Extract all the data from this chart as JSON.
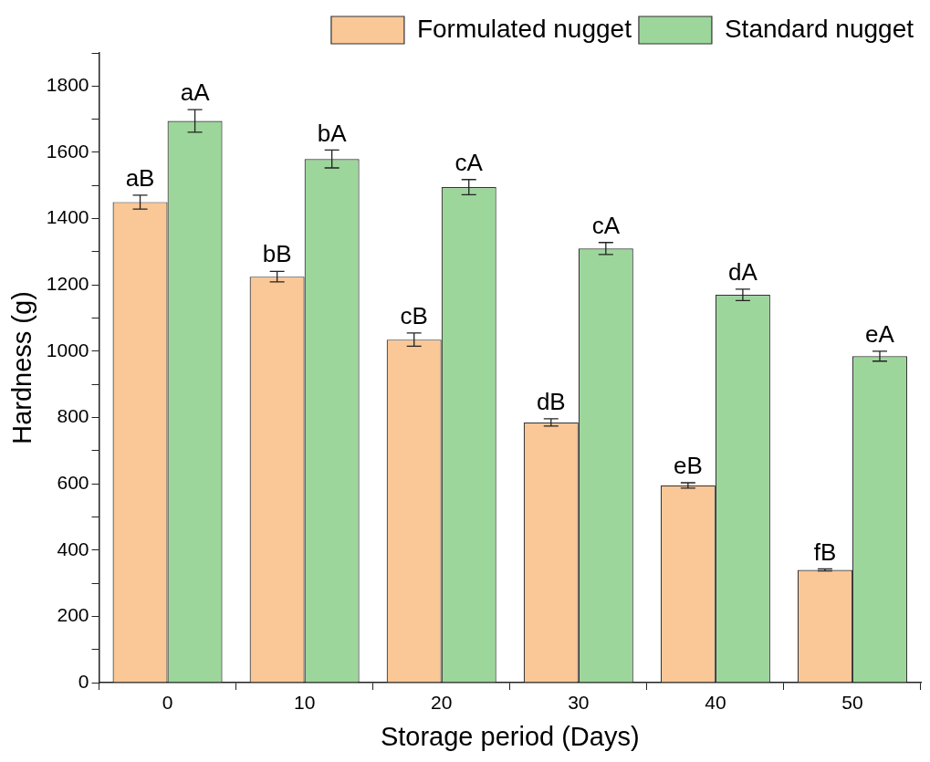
{
  "chart_data": {
    "type": "bar",
    "xlabel": "Storage period (Days)",
    "ylabel": "Hardness (g)",
    "categories": [
      "0",
      "10",
      "20",
      "30",
      "40",
      "50"
    ],
    "series": [
      {
        "name": "Formulated nugget",
        "color": "#fac796",
        "values": [
          1450,
          1225,
          1035,
          785,
          595,
          340
        ],
        "errors": [
          21,
          16,
          20,
          11,
          8,
          3
        ],
        "value_labels": [
          "aB",
          "bB",
          "cB",
          "dB",
          "eB",
          "fB"
        ]
      },
      {
        "name": "Standard nugget",
        "color": "#9dd69b",
        "values": [
          1695,
          1580,
          1495,
          1310,
          1170,
          985
        ],
        "errors": [
          34,
          27,
          23,
          18,
          17,
          15
        ],
        "value_labels": [
          "aA",
          "bA",
          "cA",
          "cA",
          "dA",
          "eA"
        ]
      }
    ],
    "ylim": [
      0,
      1900
    ],
    "yticks": [
      0,
      {
        "value": 100,
        "label": null
      },
      200,
      {
        "value": 300,
        "label": null
      },
      400,
      {
        "value": 500,
        "label": null
      },
      600,
      {
        "value": 700,
        "label": null
      },
      800,
      {
        "value": 900,
        "label": null
      },
      1000,
      {
        "value": 1100,
        "label": null
      },
      1200,
      {
        "value": 1300,
        "label": null
      },
      1400,
      {
        "value": 1500,
        "label": null
      },
      1600,
      {
        "value": 1700,
        "label": null
      },
      1800,
      {
        "value": 1900,
        "label": null
      }
    ],
    "grid": false,
    "legend": "top right"
  }
}
